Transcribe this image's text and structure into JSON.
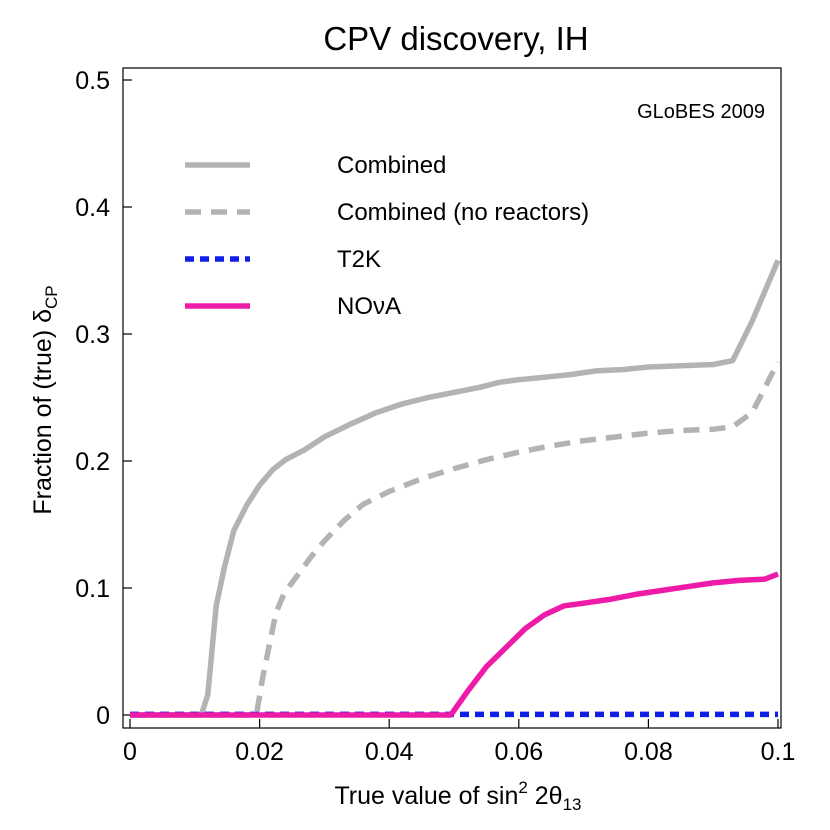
{
  "chart_data": {
    "type": "line",
    "title": "CPV discovery, IH",
    "annotation": "GLoBES 2009",
    "xlabel": {
      "prefix": "True value of sin",
      "sup": "2",
      "mid": " 2θ",
      "sub": "13"
    },
    "ylabel": {
      "prefix": "Fraction of (true) δ",
      "sub": "CP"
    },
    "xlim": [
      0,
      0.1
    ],
    "ylim": [
      0,
      0.5
    ],
    "x_ticks": [
      0,
      0.02,
      0.04,
      0.06,
      0.08,
      0.1
    ],
    "x_tick_labels": [
      "0",
      "0.02",
      "0.04",
      "0.06",
      "0.08",
      "0.1"
    ],
    "y_ticks": [
      0,
      0.1,
      0.2,
      0.3,
      0.4,
      0.5
    ],
    "y_tick_labels": [
      "0",
      "0.1",
      "0.2",
      "0.3",
      "0.4",
      "0.5"
    ],
    "grid": false,
    "legend_position": "top-left",
    "series": [
      {
        "name": "Combined",
        "color": "#b3b3b3",
        "dash": "solid",
        "points": [
          [
            0,
            0
          ],
          [
            0.011,
            0
          ],
          [
            0.012,
            0.016
          ],
          [
            0.0133,
            0.086
          ],
          [
            0.0145,
            0.115
          ],
          [
            0.016,
            0.145
          ],
          [
            0.018,
            0.165
          ],
          [
            0.02,
            0.181
          ],
          [
            0.022,
            0.193
          ],
          [
            0.024,
            0.201
          ],
          [
            0.027,
            0.209
          ],
          [
            0.03,
            0.219
          ],
          [
            0.034,
            0.229
          ],
          [
            0.038,
            0.238
          ],
          [
            0.042,
            0.245
          ],
          [
            0.046,
            0.25
          ],
          [
            0.05,
            0.254
          ],
          [
            0.054,
            0.258
          ],
          [
            0.057,
            0.262
          ],
          [
            0.06,
            0.264
          ],
          [
            0.064,
            0.266
          ],
          [
            0.068,
            0.268
          ],
          [
            0.072,
            0.271
          ],
          [
            0.076,
            0.272
          ],
          [
            0.08,
            0.274
          ],
          [
            0.085,
            0.275
          ],
          [
            0.09,
            0.276
          ],
          [
            0.093,
            0.279
          ],
          [
            0.096,
            0.31
          ],
          [
            0.1,
            0.358
          ]
        ]
      },
      {
        "name": "Combined (no reactors)",
        "color": "#b3b3b3",
        "dash": "dashed",
        "points": [
          [
            0,
            0
          ],
          [
            0.0195,
            0
          ],
          [
            0.0205,
            0.03
          ],
          [
            0.0225,
            0.08
          ],
          [
            0.0238,
            0.096
          ],
          [
            0.026,
            0.111
          ],
          [
            0.028,
            0.125
          ],
          [
            0.03,
            0.137
          ],
          [
            0.033,
            0.153
          ],
          [
            0.036,
            0.166
          ],
          [
            0.04,
            0.176
          ],
          [
            0.045,
            0.186
          ],
          [
            0.05,
            0.194
          ],
          [
            0.055,
            0.201
          ],
          [
            0.06,
            0.207
          ],
          [
            0.065,
            0.212
          ],
          [
            0.07,
            0.216
          ],
          [
            0.075,
            0.219
          ],
          [
            0.08,
            0.222
          ],
          [
            0.085,
            0.224
          ],
          [
            0.09,
            0.225
          ],
          [
            0.093,
            0.227
          ],
          [
            0.096,
            0.238
          ],
          [
            0.1,
            0.278
          ]
        ]
      },
      {
        "name": "T2K",
        "color": "#0f1fe6",
        "dash": "dotted",
        "points": [
          [
            0,
            0.0005
          ],
          [
            0.1,
            0.0005
          ]
        ]
      },
      {
        "name": "NOνA",
        "color": "#ee1aa8",
        "dash": "solid",
        "points": [
          [
            0,
            0
          ],
          [
            0.0495,
            0
          ],
          [
            0.052,
            0.018
          ],
          [
            0.055,
            0.038
          ],
          [
            0.058,
            0.053
          ],
          [
            0.061,
            0.068
          ],
          [
            0.064,
            0.079
          ],
          [
            0.067,
            0.086
          ],
          [
            0.07,
            0.088
          ],
          [
            0.074,
            0.091
          ],
          [
            0.078,
            0.095
          ],
          [
            0.082,
            0.098
          ],
          [
            0.086,
            0.101
          ],
          [
            0.09,
            0.104
          ],
          [
            0.094,
            0.106
          ],
          [
            0.098,
            0.107
          ],
          [
            0.1,
            0.111
          ]
        ]
      }
    ]
  }
}
